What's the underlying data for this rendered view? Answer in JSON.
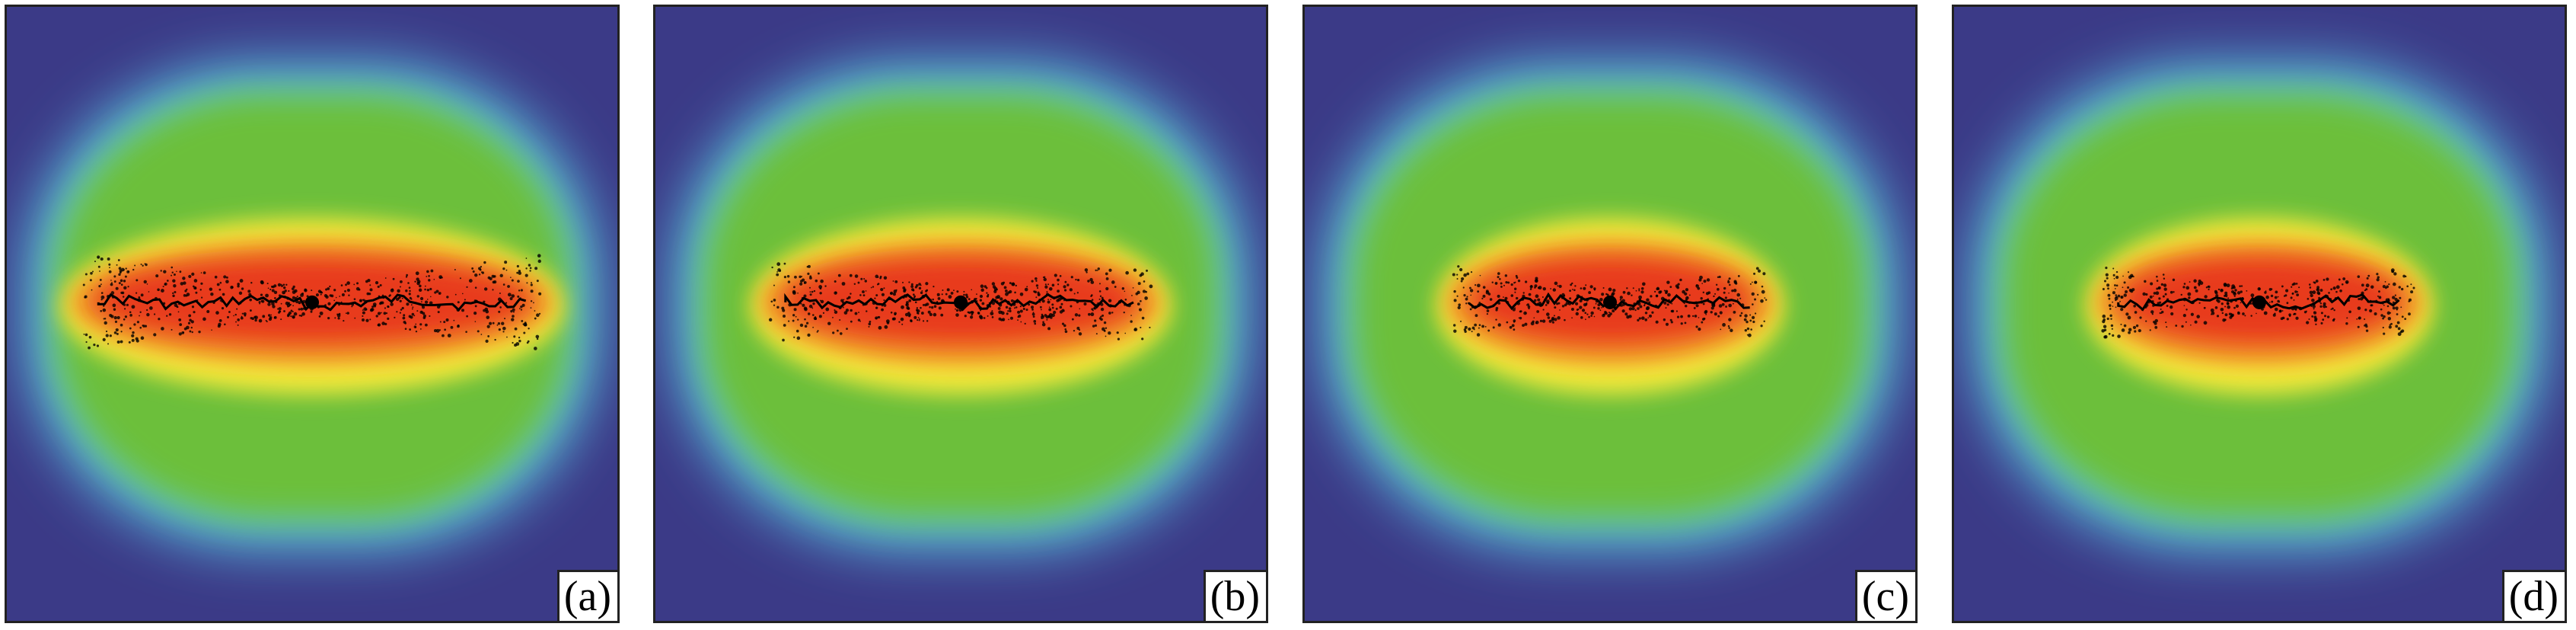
{
  "panels": [
    {
      "label": "(a)",
      "spread": 1.0
    },
    {
      "label": "(b)",
      "spread": 0.82
    },
    {
      "label": "(c)",
      "spread": 0.66
    },
    {
      "label": "(d)",
      "spread": 0.66
    }
  ],
  "colors": {
    "background": "#3b3a87",
    "halo": "#5fd4ee",
    "field": "#6cbf3a",
    "warm": "#f3e93a",
    "core": "#e83a1e",
    "crack": "#000000"
  }
}
